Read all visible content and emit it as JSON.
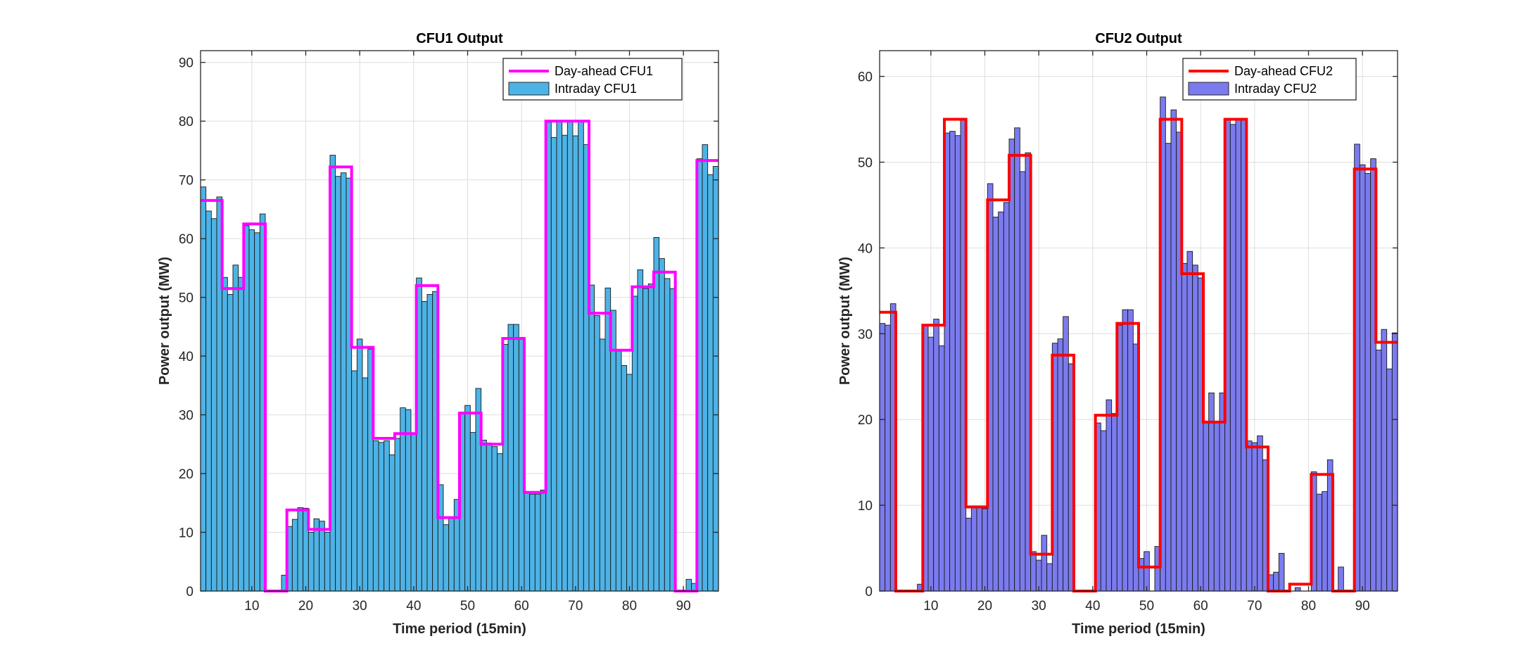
{
  "chart_data": [
    {
      "type": "bar",
      "title": "CFU1 Output",
      "xlabel": "Time period (15min)",
      "ylabel": "Power output (MW)",
      "xlim": [
        0.5,
        96.5
      ],
      "ylim": [
        0,
        92
      ],
      "xticks": [
        10,
        20,
        30,
        40,
        50,
        60,
        70,
        80,
        90
      ],
      "yticks": [
        0,
        10,
        20,
        30,
        40,
        50,
        60,
        70,
        80,
        90
      ],
      "grid": true,
      "legend_position": "top-right",
      "line_series": {
        "name": "Day-ahead CFU1",
        "color": "#ff00ff",
        "values": [
          66.5,
          66.5,
          66.5,
          66.5,
          51.5,
          51.5,
          51.5,
          51.5,
          62.5,
          62.5,
          62.5,
          62.5,
          0,
          0,
          0,
          0,
          13.8,
          13.8,
          13.8,
          13.8,
          10.5,
          10.5,
          10.5,
          10.5,
          72.2,
          72.2,
          72.2,
          72.2,
          41.5,
          41.5,
          41.5,
          41.5,
          26,
          26,
          26,
          26,
          26.8,
          26.8,
          26.8,
          26.8,
          52,
          52,
          52,
          52,
          12.5,
          12.5,
          12.5,
          12.5,
          30.3,
          30.3,
          30.3,
          30.3,
          25,
          25,
          25,
          25,
          43,
          43,
          43,
          43,
          16.8,
          16.8,
          16.8,
          16.8,
          80,
          80,
          80,
          80,
          80,
          80,
          80,
          80,
          47.3,
          47.3,
          47.3,
          47.3,
          41,
          41,
          41,
          41,
          51.8,
          51.8,
          51.8,
          51.8,
          54.3,
          54.3,
          54.3,
          54.3,
          0,
          0,
          0,
          0,
          73.3,
          73.3,
          73.3,
          73.3
        ]
      },
      "bar_series": {
        "name": "Intraday CFU1",
        "color": "#4db3e6",
        "values": [
          68.8,
          64.7,
          63.4,
          67.1,
          53.4,
          50.5,
          55.5,
          53.4,
          62.2,
          61.5,
          61,
          64.2,
          0,
          0,
          0,
          2.7,
          11,
          12.2,
          14.2,
          14.1,
          10,
          12.3,
          11.9,
          10,
          74.2,
          70.6,
          71.2,
          70.3,
          37.5,
          42.9,
          36.3,
          41.2,
          25.6,
          25.3,
          25.6,
          23.2,
          26,
          31.2,
          30.9,
          26.8,
          53.3,
          49.3,
          50.5,
          51,
          18.1,
          11.3,
          12.6,
          15.6,
          30.2,
          31.6,
          27,
          34.5,
          25.7,
          25.2,
          24.6,
          23.4,
          42,
          45.4,
          45.4,
          43.2,
          16.8,
          16.5,
          16.5,
          17.2,
          79.8,
          77.2,
          80.1,
          77.6,
          80,
          77.5,
          80.1,
          76,
          52.1,
          46.9,
          42.9,
          51.6,
          47.8,
          41.1,
          38.4,
          36.9,
          50.2,
          54.7,
          51.5,
          52.3,
          60.2,
          56.6,
          53.2,
          51.5,
          0,
          0,
          2,
          1.3,
          73.6,
          76,
          70.9,
          72.3
        ]
      }
    },
    {
      "type": "bar",
      "title": "CFU2 Output",
      "xlabel": "Time period (15min)",
      "ylabel": "Power output (MW)",
      "xlim": [
        0.5,
        96.5
      ],
      "ylim": [
        0,
        63
      ],
      "xticks": [
        10,
        20,
        30,
        40,
        50,
        60,
        70,
        80,
        90
      ],
      "yticks": [
        0,
        10,
        20,
        30,
        40,
        50,
        60
      ],
      "grid": true,
      "legend_position": "top-right",
      "line_series": {
        "name": "Day-ahead CFU2",
        "color": "#ff0000",
        "values": [
          32.5,
          32.5,
          32.5,
          0,
          0,
          0,
          0,
          0,
          31,
          31,
          31,
          31,
          55,
          55,
          55,
          55,
          9.8,
          9.8,
          9.8,
          9.8,
          45.6,
          45.6,
          45.6,
          45.6,
          50.8,
          50.8,
          50.8,
          50.8,
          4.3,
          4.3,
          4.3,
          4.3,
          27.5,
          27.5,
          27.5,
          27.5,
          0,
          0,
          0,
          0,
          20.5,
          20.5,
          20.5,
          20.5,
          31.2,
          31.2,
          31.2,
          31.2,
          2.8,
          2.8,
          2.8,
          2.8,
          55,
          55,
          55,
          55,
          37,
          37,
          37,
          37,
          19.7,
          19.7,
          19.7,
          19.7,
          55,
          55,
          55,
          55,
          16.8,
          16.8,
          16.8,
          16.8,
          0,
          0,
          0,
          0,
          0.8,
          0.8,
          0.8,
          0.8,
          13.6,
          13.6,
          13.6,
          13.6,
          0,
          0,
          0,
          0,
          49.2,
          49.2,
          49.2,
          49.2,
          29,
          29,
          29,
          29
        ]
      },
      "bar_series": {
        "name": "Intraday CFU2",
        "color": "#7b7bef",
        "values": [
          31.2,
          31,
          33.5,
          0,
          0,
          0,
          0,
          0.8,
          31,
          29.6,
          31.7,
          28.6,
          53.4,
          53.6,
          53.1,
          54.9,
          8.5,
          9.7,
          9.9,
          9.6,
          47.5,
          43.6,
          44.2,
          45.3,
          52.7,
          54,
          48.9,
          51.1,
          4.6,
          3.6,
          6.5,
          3.2,
          28.9,
          29.4,
          32,
          26.5,
          0,
          0,
          0,
          0,
          19.6,
          18.7,
          22.3,
          20.7,
          31,
          32.8,
          32.8,
          28.8,
          3.8,
          4.6,
          0,
          5.2,
          57.6,
          52.2,
          56.1,
          53.5,
          38.2,
          39.6,
          38,
          36.5,
          19.6,
          23.1,
          19.7,
          23.1,
          55.1,
          54.4,
          55,
          54.9,
          17.5,
          17.3,
          18.1,
          15.3,
          1.9,
          2.2,
          4.4,
          0,
          0,
          0.4,
          0,
          0,
          13.9,
          11.3,
          11.6,
          15.3,
          0,
          2.8,
          0,
          0,
          52.1,
          49.7,
          48.7,
          50.4,
          28.1,
          30.5,
          25.9,
          30.1
        ]
      }
    }
  ]
}
